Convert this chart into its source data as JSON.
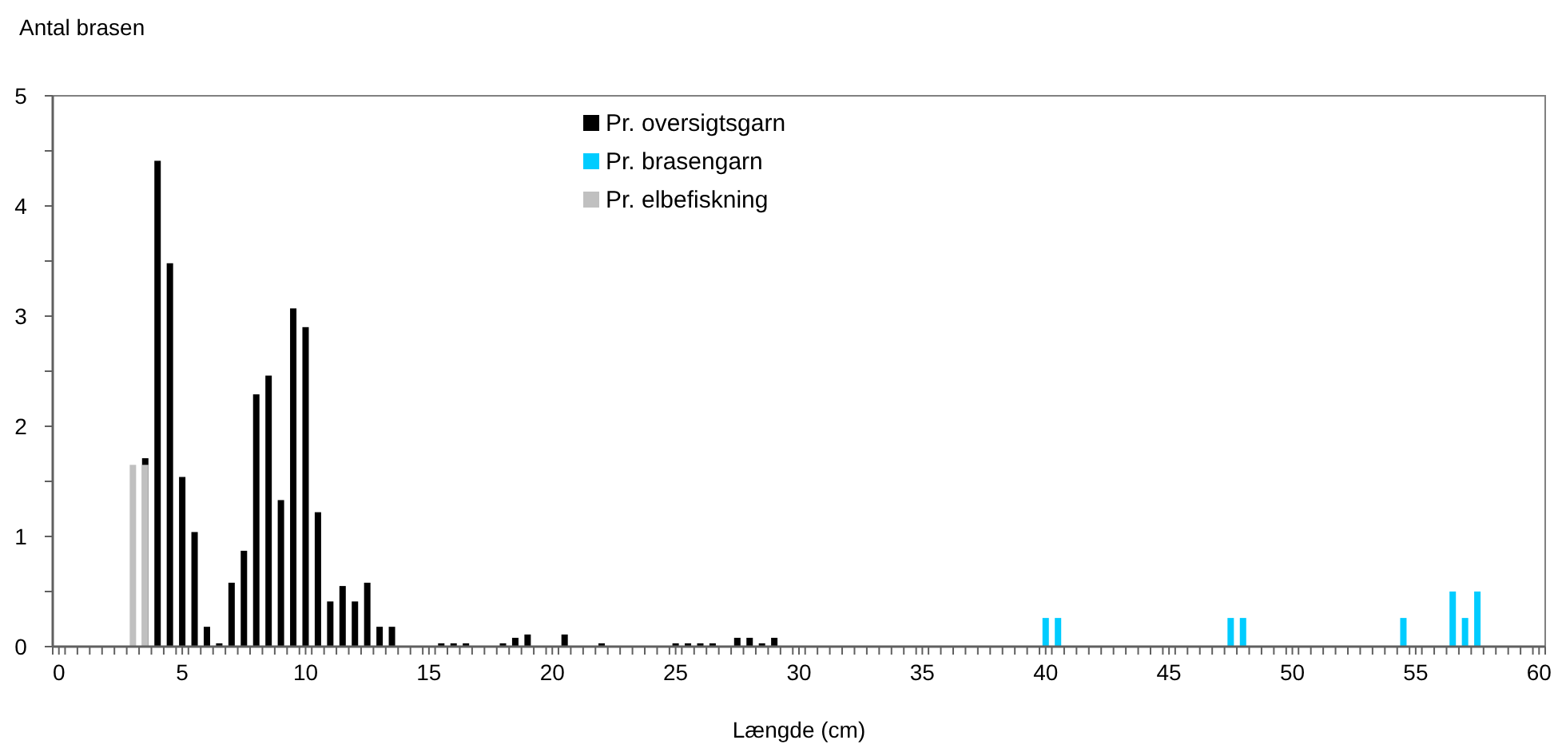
{
  "chart_data": {
    "type": "bar",
    "xlabel": "Længde (cm)",
    "ylabel": "Antal brasen",
    "xlim": [
      -0.25,
      60.25
    ],
    "xticks": [
      0,
      5,
      10,
      15,
      20,
      25,
      30,
      35,
      40,
      45,
      50,
      55,
      60,
      {
        "value": -0.25,
        "label": null
      },
      {
        "value": 0.25,
        "label": null
      },
      {
        "value": 0.75,
        "label": null
      },
      {
        "value": 1.25,
        "label": null
      },
      {
        "value": 1.75,
        "label": null
      },
      {
        "value": 2.25,
        "label": null
      },
      {
        "value": 2.75,
        "label": null
      },
      {
        "value": 3.25,
        "label": null
      },
      {
        "value": 3.75,
        "label": null
      },
      {
        "value": 4.25,
        "label": null
      },
      {
        "value": 4.75,
        "label": null
      },
      {
        "value": 5.25,
        "label": null
      },
      {
        "value": 5.75,
        "label": null
      },
      {
        "value": 6.25,
        "label": null
      },
      {
        "value": 6.75,
        "label": null
      },
      {
        "value": 7.25,
        "label": null
      },
      {
        "value": 7.75,
        "label": null
      },
      {
        "value": 8.25,
        "label": null
      },
      {
        "value": 8.75,
        "label": null
      },
      {
        "value": 9.25,
        "label": null
      },
      {
        "value": 9.75,
        "label": null
      },
      {
        "value": 10.25,
        "label": null
      },
      {
        "value": 10.75,
        "label": null
      },
      {
        "value": 11.25,
        "label": null
      },
      {
        "value": 11.75,
        "label": null
      },
      {
        "value": 12.25,
        "label": null
      },
      {
        "value": 12.75,
        "label": null
      },
      {
        "value": 13.25,
        "label": null
      },
      {
        "value": 13.75,
        "label": null
      },
      {
        "value": 14.25,
        "label": null
      },
      {
        "value": 14.75,
        "label": null
      },
      {
        "value": 15.25,
        "label": null
      },
      {
        "value": 15.75,
        "label": null
      },
      {
        "value": 16.25,
        "label": null
      },
      {
        "value": 16.75,
        "label": null
      },
      {
        "value": 17.25,
        "label": null
      },
      {
        "value": 17.75,
        "label": null
      },
      {
        "value": 18.25,
        "label": null
      },
      {
        "value": 18.75,
        "label": null
      },
      {
        "value": 19.25,
        "label": null
      },
      {
        "value": 19.75,
        "label": null
      },
      {
        "value": 20.25,
        "label": null
      },
      {
        "value": 20.75,
        "label": null
      },
      {
        "value": 21.25,
        "label": null
      },
      {
        "value": 21.75,
        "label": null
      },
      {
        "value": 22.25,
        "label": null
      },
      {
        "value": 22.75,
        "label": null
      },
      {
        "value": 23.25,
        "label": null
      },
      {
        "value": 23.75,
        "label": null
      },
      {
        "value": 24.25,
        "label": null
      },
      {
        "value": 24.75,
        "label": null
      },
      {
        "value": 25.25,
        "label": null
      },
      {
        "value": 25.75,
        "label": null
      },
      {
        "value": 26.25,
        "label": null
      },
      {
        "value": 26.75,
        "label": null
      },
      {
        "value": 27.25,
        "label": null
      },
      {
        "value": 27.75,
        "label": null
      },
      {
        "value": 28.25,
        "label": null
      },
      {
        "value": 28.75,
        "label": null
      },
      {
        "value": 29.25,
        "label": null
      },
      {
        "value": 29.75,
        "label": null
      },
      {
        "value": 30.25,
        "label": null
      },
      {
        "value": 30.75,
        "label": null
      },
      {
        "value": 31.25,
        "label": null
      },
      {
        "value": 31.75,
        "label": null
      },
      {
        "value": 32.25,
        "label": null
      },
      {
        "value": 32.75,
        "label": null
      },
      {
        "value": 33.25,
        "label": null
      },
      {
        "value": 33.75,
        "label": null
      },
      {
        "value": 34.25,
        "label": null
      },
      {
        "value": 34.75,
        "label": null
      },
      {
        "value": 35.25,
        "label": null
      },
      {
        "value": 35.75,
        "label": null
      },
      {
        "value": 36.25,
        "label": null
      },
      {
        "value": 36.75,
        "label": null
      },
      {
        "value": 37.25,
        "label": null
      },
      {
        "value": 37.75,
        "label": null
      },
      {
        "value": 38.25,
        "label": null
      },
      {
        "value": 38.75,
        "label": null
      },
      {
        "value": 39.25,
        "label": null
      },
      {
        "value": 39.75,
        "label": null
      },
      {
        "value": 40.25,
        "label": null
      },
      {
        "value": 40.75,
        "label": null
      },
      {
        "value": 41.25,
        "label": null
      },
      {
        "value": 41.75,
        "label": null
      },
      {
        "value": 42.25,
        "label": null
      },
      {
        "value": 42.75,
        "label": null
      },
      {
        "value": 43.25,
        "label": null
      },
      {
        "value": 43.75,
        "label": null
      },
      {
        "value": 44.25,
        "label": null
      },
      {
        "value": 44.75,
        "label": null
      },
      {
        "value": 45.25,
        "label": null
      },
      {
        "value": 45.75,
        "label": null
      },
      {
        "value": 46.25,
        "label": null
      },
      {
        "value": 46.75,
        "label": null
      },
      {
        "value": 47.25,
        "label": null
      },
      {
        "value": 47.75,
        "label": null
      },
      {
        "value": 48.25,
        "label": null
      },
      {
        "value": 48.75,
        "label": null
      },
      {
        "value": 49.25,
        "label": null
      },
      {
        "value": 49.75,
        "label": null
      },
      {
        "value": 50.25,
        "label": null
      },
      {
        "value": 50.75,
        "label": null
      },
      {
        "value": 51.25,
        "label": null
      },
      {
        "value": 51.75,
        "label": null
      },
      {
        "value": 52.25,
        "label": null
      },
      {
        "value": 52.75,
        "label": null
      },
      {
        "value": 53.25,
        "label": null
      },
      {
        "value": 53.75,
        "label": null
      },
      {
        "value": 54.25,
        "label": null
      },
      {
        "value": 54.75,
        "label": null
      },
      {
        "value": 55.25,
        "label": null
      },
      {
        "value": 55.75,
        "label": null
      },
      {
        "value": 56.25,
        "label": null
      },
      {
        "value": 56.75,
        "label": null
      },
      {
        "value": 57.25,
        "label": null
      },
      {
        "value": 57.75,
        "label": null
      },
      {
        "value": 58.25,
        "label": null
      },
      {
        "value": 58.75,
        "label": null
      },
      {
        "value": 59.25,
        "label": null
      },
      {
        "value": 59.75,
        "label": null
      },
      {
        "value": 60.25,
        "label": null
      }
    ],
    "ylim": [
      0,
      5
    ],
    "yticks": [
      0,
      1,
      2,
      3,
      4,
      5,
      {
        "value": 0.5,
        "label": null
      },
      {
        "value": 1.5,
        "label": null
      },
      {
        "value": 2.5,
        "label": null
      },
      {
        "value": 3.5,
        "label": null
      },
      {
        "value": 4.5,
        "label": null
      }
    ],
    "grid": false,
    "legend": "top",
    "series": [
      {
        "name": "Pr. oversigtsgarn",
        "color": "#000000",
        "x": [
          3.5,
          4,
          4.5,
          5,
          5.5,
          6,
          6.5,
          7,
          7.5,
          8,
          8.5,
          9,
          9.5,
          10,
          10.5,
          11,
          11.5,
          12,
          12.5,
          13,
          13.5,
          15.5,
          16,
          16.5,
          18,
          18.5,
          19,
          20.5,
          22,
          25,
          25.5,
          26,
          26.5,
          27.5,
          28,
          28.5,
          29
        ],
        "values": [
          1.71,
          4.41,
          3.48,
          1.54,
          1.04,
          0.18,
          0.03,
          0.58,
          0.87,
          2.29,
          2.46,
          1.33,
          3.07,
          2.9,
          1.22,
          0.41,
          0.55,
          0.41,
          0.58,
          0.18,
          0.18,
          0.03,
          0.03,
          0.03,
          0.03,
          0.08,
          0.11,
          0.11,
          0.03,
          0.03,
          0.03,
          0.03,
          0.03,
          0.08,
          0.08,
          0.03,
          0.08
        ]
      },
      {
        "name": "Pr. brasengarn",
        "color": "#00ccff",
        "x": [
          40,
          40.5,
          47.5,
          48,
          54.5,
          56.5,
          57,
          57.5
        ],
        "values": [
          0.26,
          0.26,
          0.26,
          0.26,
          0.26,
          0.5,
          0.26,
          0.5
        ]
      },
      {
        "name": "Pr. elbefiskning",
        "color": "#c0c0c0",
        "x": [
          3,
          3.5
        ],
        "values": [
          1.65,
          1.65
        ]
      }
    ]
  }
}
